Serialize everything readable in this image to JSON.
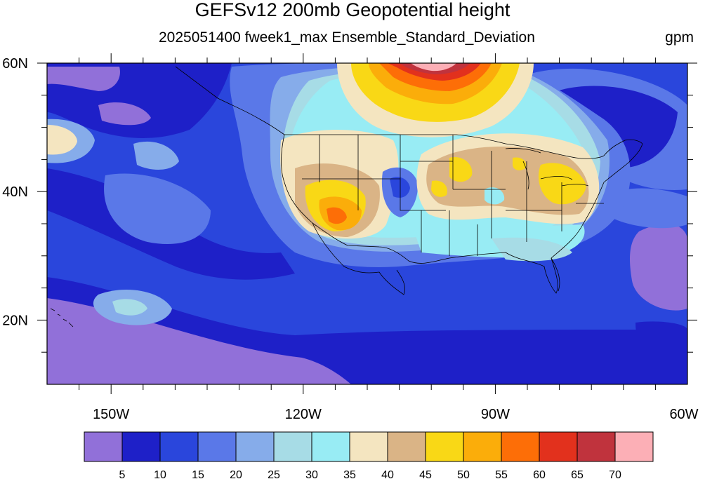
{
  "title": "GEFSv12 200mb Geopotential height",
  "subtitle": "2025051400 fweek1_max Ensemble_Standard_Deviation",
  "units": "gpm",
  "map": {
    "lon_range": [
      -160,
      -60
    ],
    "lat_range": [
      10,
      60
    ],
    "x_ticks": [
      {
        "lon": -150,
        "label": "150W"
      },
      {
        "lon": -120,
        "label": "120W"
      },
      {
        "lon": -90,
        "label": "90W"
      },
      {
        "lon": -60,
        "label": "60W"
      }
    ],
    "y_ticks": [
      {
        "lat": 20,
        "label": "20N"
      },
      {
        "lat": 40,
        "label": "40N"
      },
      {
        "lat": 60,
        "label": "60N"
      }
    ]
  },
  "colorbar": {
    "colors": [
      "#9170d9",
      "#1e20c8",
      "#2a46dc",
      "#5a78e8",
      "#86acea",
      "#a7dce6",
      "#98ecf4",
      "#f4e5c0",
      "#dab486",
      "#f9d816",
      "#fbad0a",
      "#fd6e07",
      "#e2311d",
      "#c0333d",
      "#fcafb6"
    ],
    "labels": [
      "5",
      "10",
      "15",
      "20",
      "25",
      "30",
      "35",
      "40",
      "45",
      "50",
      "55",
      "60",
      "65",
      "70"
    ]
  }
}
